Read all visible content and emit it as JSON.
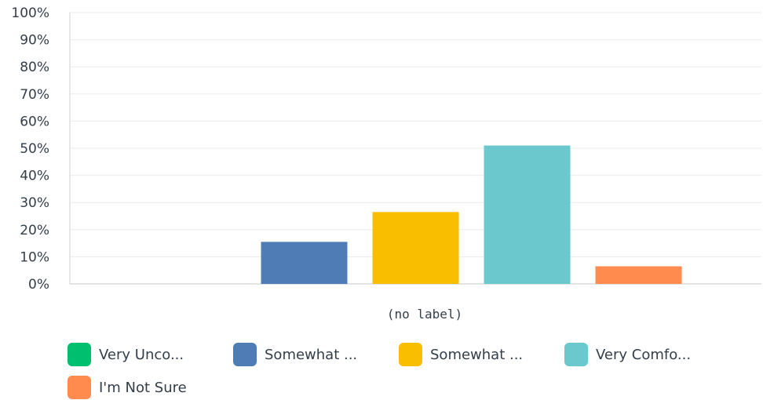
{
  "chart_data": {
    "type": "bar",
    "group_label": "(no label)",
    "categories": [
      "Very Unco...",
      "Somewhat ...",
      "Somewhat ...",
      "Very Comfo...",
      "I'm Not Sure"
    ],
    "values": [
      0,
      15.5,
      26.5,
      51,
      6.5
    ],
    "colors": [
      "#00bf6f",
      "#507cb6",
      "#f9be00",
      "#6bc8cd",
      "#ff8b4f"
    ],
    "yticks": [
      "0%",
      "10%",
      "20%",
      "30%",
      "40%",
      "50%",
      "60%",
      "70%",
      "80%",
      "90%",
      "100%"
    ],
    "ylim": [
      0,
      100
    ],
    "grid": true,
    "legend_position": "bottom"
  }
}
